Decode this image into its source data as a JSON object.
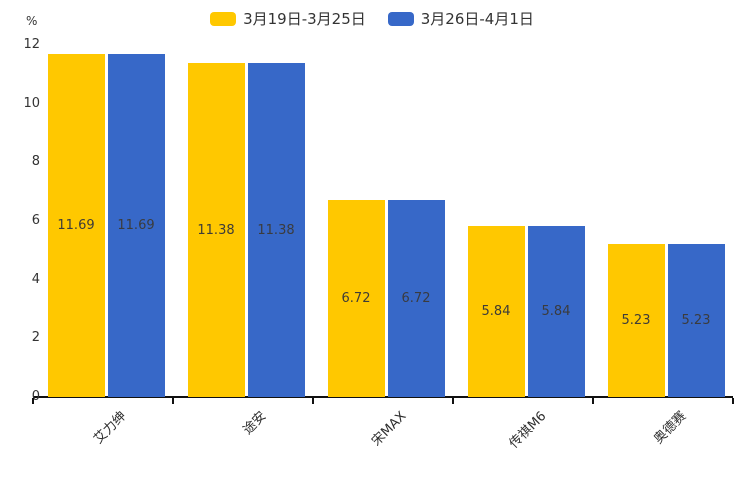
{
  "legend": {
    "series1_label": "3月19日-3月25日",
    "series2_label": "3月26日-4月1日"
  },
  "chart_data": {
    "type": "bar",
    "title": "",
    "xlabel": "",
    "ylabel": "%",
    "categories": [
      "艾力绅",
      "途安",
      "宋MAX",
      "传祺M6",
      "奥德赛"
    ],
    "series": [
      {
        "name": "3月19日-3月25日",
        "color": "#FFC800",
        "values": [
          11.69,
          11.38,
          6.72,
          5.84,
          5.23
        ]
      },
      {
        "name": "3月26日-4月1日",
        "color": "#3768C8",
        "values": [
          11.69,
          11.38,
          6.72,
          5.84,
          5.23
        ]
      }
    ],
    "ylim": [
      0,
      12
    ],
    "yticks": [
      0,
      2,
      4,
      6,
      8,
      10,
      12
    ],
    "grid": false,
    "legend_position": "top-center",
    "value_labels": "inside-middle",
    "x_label_rotation_deg": 45
  }
}
